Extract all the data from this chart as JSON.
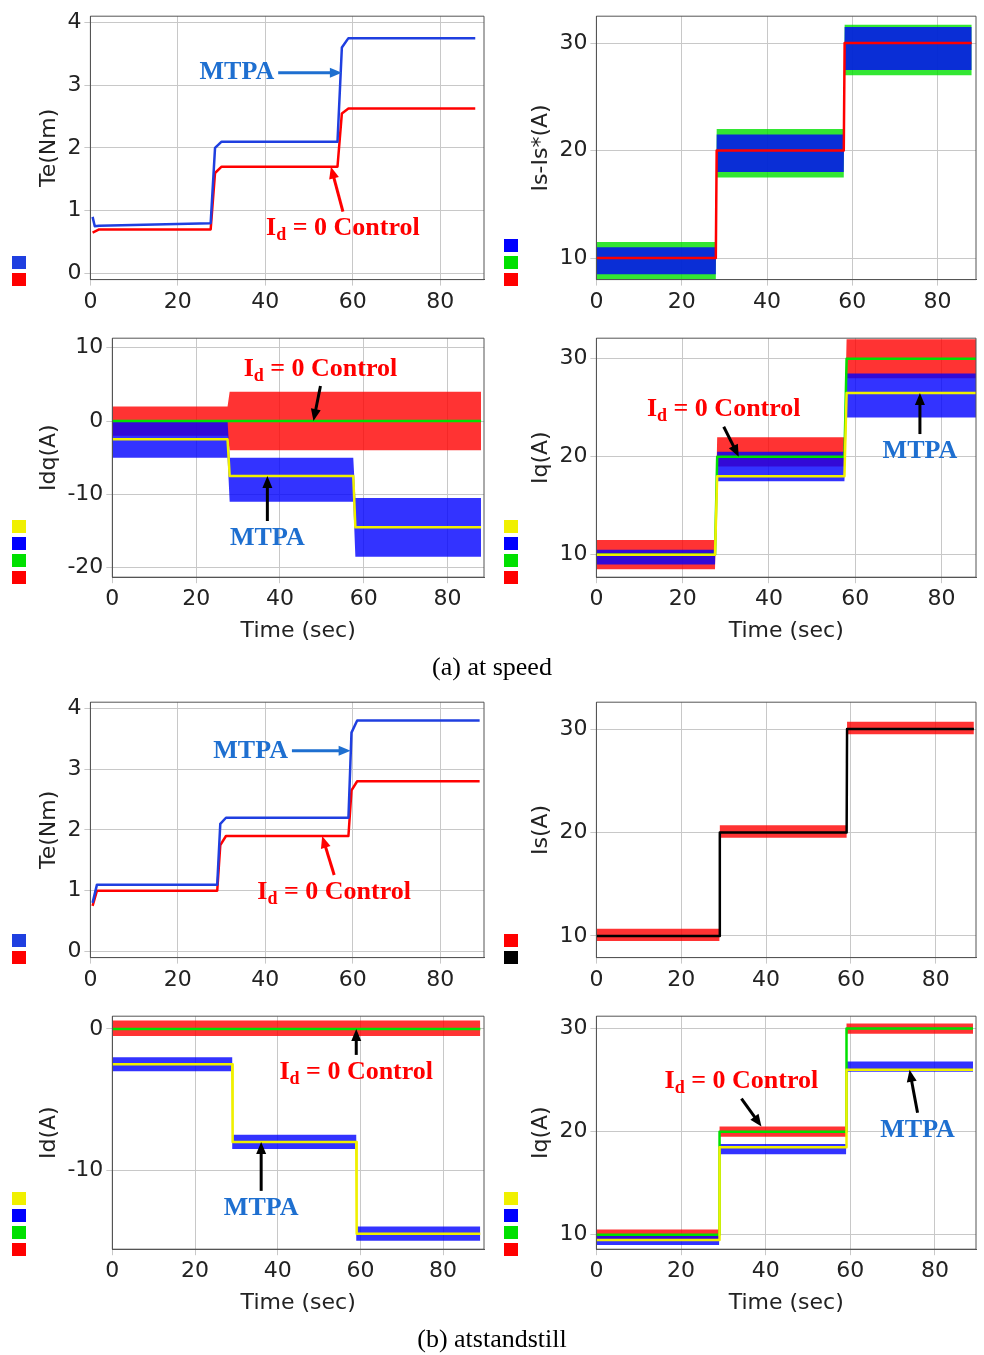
{
  "chart_data": [
    {
      "type": "line",
      "ylabel": "Te(Nm)",
      "xlim": [
        0,
        90
      ],
      "xticks": [
        0,
        20,
        40,
        60,
        80
      ],
      "ylim": [
        -0.1,
        4.1
      ],
      "yticks": [
        0,
        1,
        2,
        3,
        4
      ],
      "grid": true,
      "series": [
        {
          "color": "#ff0000",
          "x": [
            0.5,
            2,
            27.5,
            28.5,
            30,
            56.5,
            57.5,
            59,
            88
          ],
          "values": [
            0.65,
            0.7,
            0.7,
            1.6,
            1.7,
            1.7,
            2.55,
            2.63,
            2.63
          ]
        },
        {
          "color": "#1f3fe0",
          "x": [
            0.5,
            1,
            2,
            27.5,
            28.5,
            30,
            56.5,
            57.5,
            59,
            88
          ],
          "values": [
            0.9,
            0.75,
            0.76,
            0.8,
            2.0,
            2.1,
            2.1,
            3.6,
            3.75,
            3.75
          ]
        }
      ],
      "annotations": [
        {
          "text": "MTPA",
          "x": 57.5,
          "y": 3.2
        },
        {
          "text": "I$_{d}$ = 0 Control",
          "x": 55,
          "y": 1.7
        }
      ]
    },
    {
      "type": "line",
      "ylabel": "Is-Is*(A)",
      "xlim": [
        0,
        89
      ],
      "xticks": [
        0,
        20,
        40,
        60,
        80
      ],
      "ylim": [
        8,
        32.5
      ],
      "yticks": [
        10,
        20,
        30
      ],
      "grid": true,
      "series": [
        {
          "color": "#ff0000",
          "x": [
            0,
            28,
            28.2,
            58,
            58.2,
            88
          ],
          "values": [
            10,
            10,
            20,
            20,
            30,
            30
          ]
        },
        {
          "color": "#00e000",
          "x": [
            0,
            28,
            28.2,
            58,
            58.2,
            88
          ],
          "values": [
            null,
            null,
            null,
            null,
            null,
            null
          ],
          "lower": [
            8,
            8,
            17.5,
            17.5,
            27,
            27
          ],
          "upper": [
            11.5,
            11.5,
            22,
            22,
            31.7,
            31.7
          ]
        },
        {
          "color": "#0000ff",
          "x": [
            0,
            28,
            28.2,
            58,
            58.2,
            88
          ],
          "values": [
            null,
            null,
            null,
            null,
            null,
            null
          ],
          "lower": [
            8.5,
            8.5,
            18,
            18,
            27.5,
            27.5
          ],
          "upper": [
            11,
            11,
            21.5,
            21.5,
            31.5,
            31.5
          ]
        }
      ]
    },
    {
      "type": "line",
      "ylabel": "Idq(A)",
      "xlabel": "Time (sec)",
      "xlim": [
        0,
        88.7
      ],
      "xticks": [
        0,
        20,
        40,
        60,
        80
      ],
      "ylim": [
        -21.3,
        11.3
      ],
      "yticks": [
        -20,
        -10,
        0,
        10
      ],
      "grid": true,
      "series": [
        {
          "color": "#ff0000",
          "x": [
            0,
            27.5,
            28,
            88
          ],
          "values": [
            null,
            null,
            null,
            null
          ],
          "lower": [
            -2,
            -2,
            -4,
            -4
          ],
          "upper": [
            2,
            2,
            4,
            4
          ]
        },
        {
          "color": "#00e000",
          "x": [
            0,
            88
          ],
          "values": [
            0,
            0
          ]
        },
        {
          "color": "#0000ff",
          "x": [
            0,
            27.5,
            28,
            57.5,
            58,
            88
          ],
          "values": [
            null,
            null,
            null,
            null,
            null,
            null
          ],
          "lower": [
            -5,
            -5,
            -11,
            -11,
            -18.5,
            -18.5
          ],
          "upper": [
            0,
            0,
            -5,
            -5,
            -10.5,
            -10.5
          ]
        },
        {
          "color": "#f0f000",
          "x": [
            0,
            27.5,
            28,
            57.5,
            58,
            88
          ],
          "values": [
            -2.5,
            -2.5,
            -7.5,
            -7.5,
            -14.5,
            -14.5
          ]
        }
      ],
      "annotations": [
        {
          "text": "I$_{d}$ = 0 Control",
          "x": 48,
          "y": 0
        },
        {
          "text": "MTPA",
          "x": 37,
          "y": -7.5
        },
        "(a) at speed"
      ]
    },
    {
      "type": "line",
      "ylabel": "Iq(A)",
      "xlabel": "Time (sec)",
      "xlim": [
        0,
        88
      ],
      "xticks": [
        0,
        20,
        40,
        60,
        80
      ],
      "ylim": [
        7.7,
        32.1
      ],
      "yticks": [
        10,
        20,
        30
      ],
      "grid": true,
      "series": [
        {
          "color": "#ff0000",
          "x": [
            0,
            27.5,
            28,
            57.5,
            58,
            88
          ],
          "values": [
            null,
            null,
            null,
            null,
            null,
            null
          ],
          "lower": [
            8.5,
            8.5,
            19,
            19,
            28,
            28
          ],
          "upper": [
            11.5,
            11.5,
            22,
            22,
            32,
            32
          ]
        },
        {
          "color": "#00e000",
          "x": [
            0,
            27.5,
            28,
            57.5,
            58,
            88
          ],
          "values": [
            10,
            10,
            20,
            20,
            30,
            30
          ]
        },
        {
          "color": "#0000ff",
          "x": [
            0,
            27.5,
            28,
            57.5,
            58,
            88
          ],
          "values": [
            null,
            null,
            null,
            null,
            null,
            null
          ],
          "lower": [
            9,
            9,
            17.5,
            17.5,
            24,
            24
          ],
          "upper": [
            10.5,
            10.5,
            20.5,
            20.5,
            28.5,
            28.5
          ]
        },
        {
          "color": "#f0f000",
          "x": [
            0,
            27.5,
            28,
            57.5,
            58,
            88
          ],
          "values": [
            10,
            10,
            18,
            18,
            26.5,
            26.5
          ]
        }
      ],
      "annotations": [
        {
          "text": "I$_{d}$ = 0 Control",
          "x": 33,
          "y": 20
        },
        {
          "text": "MTPA",
          "x": 75,
          "y": 26.5
        }
      ]
    },
    {
      "type": "line",
      "ylabel": "Te(Nm)",
      "xlim": [
        0,
        90
      ],
      "xticks": [
        0,
        20,
        40,
        60,
        80
      ],
      "ylim": [
        -0.1,
        4.1
      ],
      "yticks": [
        0,
        1,
        2,
        3,
        4
      ],
      "grid": true,
      "series": [
        {
          "color": "#ff0000",
          "x": [
            0.5,
            1.5,
            29,
            29.7,
            31,
            59,
            59.7,
            61,
            89
          ],
          "values": [
            0.75,
            1.0,
            1.0,
            1.75,
            1.9,
            1.9,
            2.65,
            2.8,
            2.8
          ]
        },
        {
          "color": "#1f3fe0",
          "x": [
            0.5,
            1.5,
            29,
            29.7,
            31,
            59,
            59.7,
            61,
            89
          ],
          "values": [
            0.8,
            1.1,
            1.1,
            2.1,
            2.2,
            2.2,
            3.6,
            3.8,
            3.8
          ]
        }
      ],
      "annotations": [
        {
          "text": "MTPA",
          "x": 59.5,
          "y": 3.3
        },
        {
          "text": "I$_{d}$ = 0 Control",
          "x": 53,
          "y": 1.9
        }
      ]
    },
    {
      "type": "line",
      "ylabel": "Is(A)",
      "xlim": [
        0,
        89.5
      ],
      "xticks": [
        0,
        20,
        40,
        60,
        80
      ],
      "ylim": [
        7.9,
        32.6
      ],
      "yticks": [
        10,
        20,
        30
      ],
      "grid": true,
      "series": [
        {
          "color": "#000000",
          "x": [
            0,
            29,
            29.1,
            59,
            59.1,
            89
          ],
          "values": [
            10,
            10,
            20,
            20,
            30,
            30
          ]
        },
        {
          "color": "#ff0000",
          "x": [
            0,
            29,
            29.1,
            59,
            59.1,
            89
          ],
          "values": [
            null,
            null,
            null,
            null,
            null,
            null
          ],
          "lower": [
            9.5,
            9.5,
            19.5,
            19.5,
            29.5,
            29.5
          ],
          "upper": [
            10.7,
            10.7,
            20.7,
            20.7,
            30.7,
            30.7
          ]
        }
      ]
    },
    {
      "type": "line",
      "ylabel": "Id(A)",
      "xlabel": "Time (sec)",
      "xlim": [
        0,
        89.9
      ],
      "xticks": [
        0,
        20,
        40,
        60,
        80
      ],
      "ylim": [
        -15.6,
        0.9
      ],
      "yticks": [
        -10,
        0
      ],
      "grid": true,
      "series": [
        {
          "color": "#ff0000",
          "x": [
            0,
            89
          ],
          "values": [
            null,
            null
          ],
          "lower": [
            -0.5,
            -0.5
          ],
          "upper": [
            0.6,
            0.6
          ]
        },
        {
          "color": "#00e000",
          "x": [
            0,
            89
          ],
          "values": [
            0,
            0
          ]
        },
        {
          "color": "#0000ff",
          "x": [
            0,
            29,
            29.1,
            59,
            59.1,
            89
          ],
          "values": [
            null,
            null,
            null,
            null,
            null,
            null
          ],
          "lower": [
            -3,
            -3,
            -8.5,
            -8.5,
            -15,
            -15
          ],
          "upper": [
            -2,
            -2,
            -7.5,
            -7.5,
            -14,
            -14
          ]
        },
        {
          "color": "#f0f000",
          "x": [
            0,
            29,
            29.1,
            59,
            59.1,
            89
          ],
          "values": [
            -2.5,
            -2.5,
            -8,
            -8,
            -14.5,
            -14.5
          ]
        }
      ],
      "annotations": [
        {
          "text": "I$_{d}$ = 0 Control",
          "x": 59,
          "y": 0
        },
        {
          "text": "MTPA",
          "x": 36,
          "y": -8
        },
        "(b) atstandstill"
      ]
    },
    {
      "type": "line",
      "ylabel": "Iq(A)",
      "xlabel": "Time (sec)",
      "xlim": [
        0,
        89.7
      ],
      "xticks": [
        0,
        20,
        40,
        60,
        80
      ],
      "ylim": [
        8.6,
        31.2
      ],
      "yticks": [
        10,
        20,
        30
      ],
      "grid": true,
      "series": [
        {
          "color": "#ff0000",
          "x": [
            0,
            29,
            29.1,
            59,
            59.1,
            89
          ],
          "values": [
            null,
            null,
            null,
            null,
            null,
            null
          ],
          "lower": [
            9.5,
            9.5,
            19.5,
            19.5,
            29.5,
            29.5
          ],
          "upper": [
            10.5,
            10.5,
            20.5,
            20.5,
            30.5,
            30.5
          ]
        },
        {
          "color": "#00e000",
          "x": [
            0,
            29,
            29.1,
            59,
            59.1,
            89
          ],
          "values": [
            10,
            10,
            20,
            20,
            30,
            30
          ]
        },
        {
          "color": "#0000ff",
          "x": [
            0,
            29,
            29.1,
            59,
            59.1,
            89
          ],
          "values": [
            null,
            null,
            null,
            null,
            null,
            null
          ],
          "lower": [
            9,
            9,
            17.8,
            17.8,
            25.8,
            25.8
          ],
          "upper": [
            10,
            10,
            18.8,
            18.8,
            26.8,
            26.8
          ]
        },
        {
          "color": "#f0f000",
          "x": [
            0,
            29,
            29.1,
            59,
            59.1,
            89
          ],
          "values": [
            9.5,
            9.5,
            18.5,
            18.5,
            26,
            26
          ]
        }
      ],
      "annotations": [
        {
          "text": "I$_{d}$ = 0 Control",
          "x": 39,
          "y": 20.5
        },
        {
          "text": "MTPA",
          "x": 74,
          "y": 26
        }
      ]
    }
  ]
}
